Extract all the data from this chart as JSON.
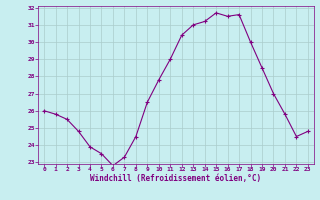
{
  "x": [
    0,
    1,
    2,
    3,
    4,
    5,
    6,
    7,
    8,
    9,
    10,
    11,
    12,
    13,
    14,
    15,
    16,
    17,
    18,
    19,
    20,
    21,
    22,
    23
  ],
  "y": [
    26.0,
    25.8,
    25.5,
    24.8,
    23.9,
    23.5,
    22.8,
    23.3,
    24.5,
    26.5,
    27.8,
    29.0,
    30.4,
    31.0,
    31.2,
    31.7,
    31.5,
    31.6,
    30.0,
    28.5,
    27.0,
    25.8,
    24.5,
    24.8
  ],
  "line_color": "#800080",
  "marker": "+",
  "marker_size": 3,
  "bg_color": "#c8eef0",
  "grid_color": "#aacccc",
  "xlabel": "Windchill (Refroidissement éolien,°C)",
  "xlabel_color": "#800080",
  "tick_color": "#800080",
  "ylim_min": 23,
  "ylim_max": 32,
  "xlim_min": -0.5,
  "xlim_max": 23.5,
  "yticks": [
    23,
    24,
    25,
    26,
    27,
    28,
    29,
    30,
    31,
    32
  ],
  "xticks": [
    0,
    1,
    2,
    3,
    4,
    5,
    6,
    7,
    8,
    9,
    10,
    11,
    12,
    13,
    14,
    15,
    16,
    17,
    18,
    19,
    20,
    21,
    22,
    23
  ],
  "font_family": "monospace",
  "tick_fontsize": 4.5,
  "xlabel_fontsize": 5.5
}
